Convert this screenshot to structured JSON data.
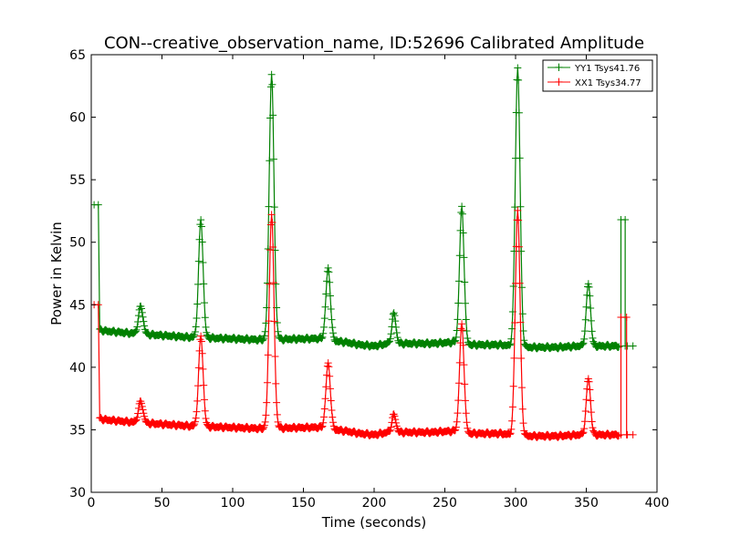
{
  "chart_data": {
    "type": "line",
    "title": "CON--creative_observation_name, ID:52696 Calibrated Amplitude",
    "xlabel": "Time (seconds)",
    "ylabel": "Power in Kelvin",
    "xlim": [
      0,
      400
    ],
    "ylim": [
      30,
      65
    ],
    "xticks": [
      0,
      50,
      100,
      150,
      200,
      250,
      300,
      350,
      400
    ],
    "yticks": [
      30,
      35,
      40,
      45,
      50,
      55,
      60,
      65
    ],
    "grid": false,
    "legend_position": "top-right",
    "marker": "+",
    "baseline_points": [
      [
        3,
        45
      ],
      [
        6,
        43
      ],
      [
        10,
        42.9
      ],
      [
        20,
        42.8
      ],
      [
        30,
        42.7
      ],
      [
        70,
        42.4
      ],
      [
        120,
        42.2
      ],
      [
        160,
        42.3
      ],
      [
        172,
        42.1
      ],
      [
        180,
        42.0
      ],
      [
        190,
        41.8
      ],
      [
        200,
        41.7
      ],
      [
        210,
        41.9
      ],
      [
        220,
        41.9
      ],
      [
        240,
        41.9
      ],
      [
        256,
        42.0
      ],
      [
        268,
        41.8
      ],
      [
        290,
        41.8
      ],
      [
        296,
        41.7
      ],
      [
        306,
        41.6
      ],
      [
        330,
        41.6
      ],
      [
        345,
        41.7
      ],
      [
        356,
        41.7
      ],
      [
        370,
        41.7
      ],
      [
        383,
        41.7
      ]
    ],
    "series": [
      {
        "name": "YY1 Tsys41.76",
        "color": "#008000",
        "start_points": [
          [
            2,
            53
          ],
          [
            5,
            53
          ]
        ],
        "offset": 0,
        "peaks": [
          {
            "center": 35,
            "height": 2.2,
            "width": 1.6
          },
          {
            "center": 77.5,
            "height": 9.4,
            "width": 1.6
          },
          {
            "center": 127.5,
            "height": 21.2,
            "width": 1.7
          },
          {
            "center": 167.5,
            "height": 5.7,
            "width": 1.6
          },
          {
            "center": 214,
            "height": 2.4,
            "width": 1.4
          },
          {
            "center": 262,
            "height": 10.9,
            "width": 1.6
          },
          {
            "center": 301.5,
            "height": 22.3,
            "width": 1.7
          },
          {
            "center": 351.5,
            "height": 5.0,
            "width": 1.5
          }
        ],
        "end_spikes": [
          [
            374.5,
            41.7
          ],
          [
            374.5,
            51.8
          ],
          [
            377.5,
            51.8
          ],
          [
            377.5,
            41.7
          ],
          [
            379,
            41.7
          ],
          [
            383,
            41.7
          ]
        ]
      },
      {
        "name": "XX1 Tsys34.77",
        "color": "#ff0000",
        "start_points": [
          [
            2,
            45
          ],
          [
            5,
            45
          ]
        ],
        "offset": -7.1,
        "peaks": [
          {
            "center": 35,
            "height": 1.7,
            "width": 1.6
          },
          {
            "center": 77.5,
            "height": 7.2,
            "width": 1.6
          },
          {
            "center": 127.5,
            "height": 17.1,
            "width": 1.7
          },
          {
            "center": 167.5,
            "height": 5.2,
            "width": 1.6
          },
          {
            "center": 214,
            "height": 1.4,
            "width": 1.4
          },
          {
            "center": 262,
            "height": 8.6,
            "width": 1.6
          },
          {
            "center": 301.5,
            "height": 18.0,
            "width": 1.7
          },
          {
            "center": 351.5,
            "height": 4.5,
            "width": 1.5
          }
        ],
        "end_spikes": [
          [
            374.5,
            34.6
          ],
          [
            374.5,
            44
          ],
          [
            378.5,
            44
          ],
          [
            378.5,
            34.6
          ],
          [
            379,
            34.6
          ],
          [
            383,
            34.6
          ]
        ]
      }
    ]
  }
}
